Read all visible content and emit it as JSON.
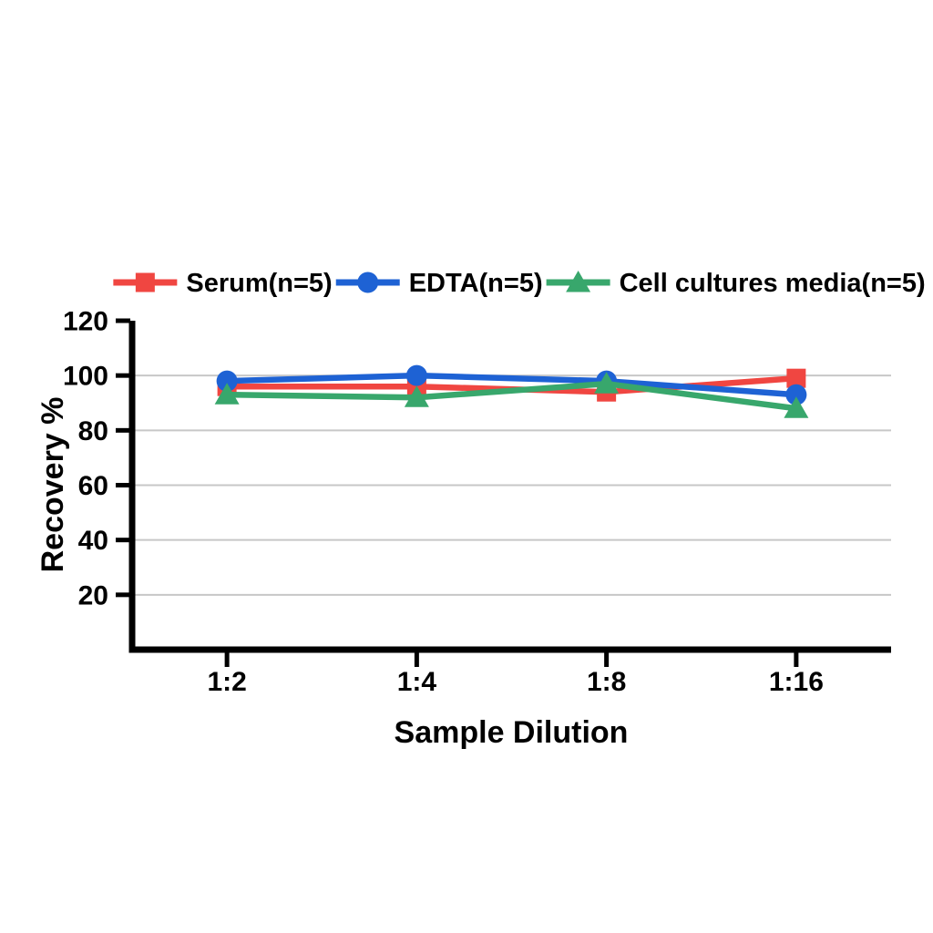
{
  "figure": {
    "background_color": "#ffffff",
    "axis_color": "#000000",
    "gridline_color": "#c7c7c7"
  },
  "chart_data": {
    "type": "line",
    "title": "",
    "xlabel": "Sample Dilution",
    "ylabel": "Recovery %",
    "categories": [
      "1:2",
      "1:4",
      "1:8",
      "1:16"
    ],
    "ylim": [
      0,
      120
    ],
    "y_ticks": [
      20,
      40,
      60,
      80,
      100,
      120
    ],
    "grid": "horizontal-only",
    "legend_position": "top-center",
    "series": [
      {
        "name": "Serum(n=5)",
        "marker": "square",
        "color": "#F04641",
        "values": [
          96,
          96,
          94,
          99
        ]
      },
      {
        "name": "EDTA(n=5)",
        "marker": "circle",
        "color": "#1E62D4",
        "values": [
          98,
          100,
          98,
          93
        ]
      },
      {
        "name": "Cell cultures media(n=5)",
        "marker": "triangle",
        "color": "#38A76C",
        "values": [
          93,
          92,
          97,
          88
        ]
      }
    ]
  }
}
